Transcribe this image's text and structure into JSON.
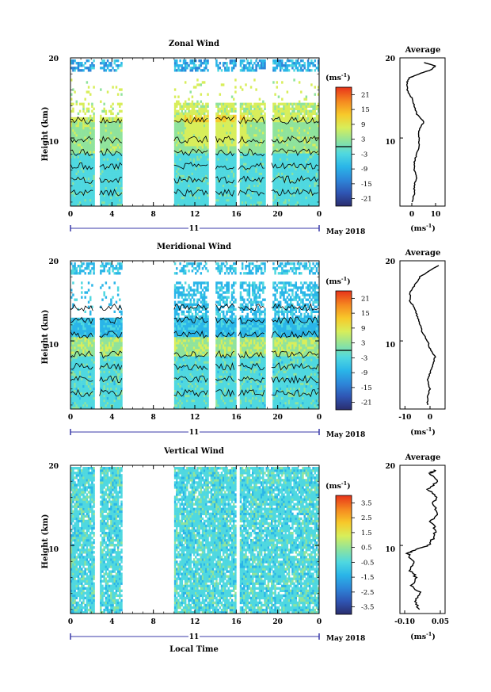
{
  "colors": {
    "scale": [
      "#2a2d6e",
      "#2f55b3",
      "#2d86d9",
      "#2ab5e8",
      "#4fd8e0",
      "#8fe39c",
      "#d8ee5a",
      "#f7c92a",
      "#f58a20",
      "#e8331a"
    ]
  },
  "chart_data": [
    {
      "type": "heatmap",
      "title": "Zonal Wind",
      "ylabel": "Height (km)",
      "xlabel": "",
      "y_ticks": [
        "20",
        "10"
      ],
      "x_ticks": [
        "0",
        "4",
        "8",
        "12",
        "16",
        "20",
        "0"
      ],
      "x_range_hours": [
        0,
        24
      ],
      "y_range_km": [
        1.5,
        20
      ],
      "date_row_label": "11",
      "date_label": "May 2018",
      "colorbar": {
        "unit": "(ms",
        "unit_exp": "-1",
        "unit_close": ")",
        "tick_labels": [
          "21",
          "15",
          "9",
          "3",
          "-3",
          "-9",
          "-15",
          "-21"
        ],
        "range": [
          -24,
          24
        ],
        "zero_line": true
      },
      "data_gaps_hours": [
        [
          2.3,
          2.8
        ],
        [
          5.0,
          10.0
        ],
        [
          13.4,
          14.0
        ]
      ],
      "profile": {
        "title": "Average",
        "x_ticks": [
          "0",
          "10"
        ],
        "x_range": [
          -5,
          14
        ],
        "xlabel": "(ms",
        "xlabel_exp": "-1",
        "xlabel_close": ")",
        "y_ticks": [
          "20",
          "10"
        ],
        "height_km": [
          2,
          3,
          4,
          5,
          6,
          7,
          8,
          9,
          10,
          11,
          12,
          13,
          14,
          15,
          16,
          17,
          17.5,
          18,
          18.5,
          19,
          19.5
        ],
        "values": [
          0,
          1,
          1,
          2,
          1,
          1,
          2,
          3,
          3,
          3,
          5,
          2,
          1,
          0,
          -2,
          -2,
          -1,
          3,
          8,
          10,
          4
        ]
      }
    },
    {
      "type": "heatmap",
      "title": "Meridional Wind",
      "ylabel": "Height (km)",
      "xlabel": "",
      "y_ticks": [
        "20",
        "10"
      ],
      "x_ticks": [
        "0",
        "4",
        "8",
        "12",
        "16",
        "20",
        "0"
      ],
      "x_range_hours": [
        0,
        24
      ],
      "y_range_km": [
        1.5,
        20
      ],
      "date_row_label": "11",
      "date_label": "May 2018",
      "colorbar": {
        "unit": "(ms",
        "unit_exp": "-1",
        "unit_close": ")",
        "tick_labels": [
          "21",
          "15",
          "9",
          "3",
          "-3",
          "-9",
          "-15",
          "-21"
        ],
        "range": [
          -24,
          24
        ],
        "zero_line": true
      },
      "data_gaps_hours": [
        [
          2.3,
          2.8
        ],
        [
          5.0,
          10.0
        ],
        [
          13.4,
          14.0
        ]
      ],
      "profile": {
        "title": "Average",
        "x_ticks": [
          "-10",
          "0"
        ],
        "x_range": [
          -12,
          6
        ],
        "xlabel": "(ms",
        "xlabel_exp": "-1",
        "xlabel_close": ")",
        "y_ticks": [
          "20",
          "10"
        ],
        "height_km": [
          2,
          3,
          4,
          5,
          6,
          7,
          8,
          9,
          10,
          11,
          12,
          13,
          14,
          15,
          16,
          17,
          18,
          19,
          19.5
        ],
        "values": [
          -1,
          -1,
          0,
          -1,
          0,
          1,
          2,
          0,
          -1,
          -3,
          -4,
          -5,
          -6,
          -8,
          -8,
          -6,
          -4,
          1,
          4
        ]
      }
    },
    {
      "type": "heatmap",
      "title": "Vertical Wind",
      "ylabel": "Height (km)",
      "xlabel": "Local Time",
      "y_ticks": [
        "20",
        "10"
      ],
      "x_ticks": [
        "0",
        "4",
        "8",
        "12",
        "16",
        "20",
        "0"
      ],
      "x_range_hours": [
        0,
        24
      ],
      "y_range_km": [
        1.5,
        20
      ],
      "date_row_label": "11",
      "date_label": "May 2018",
      "colorbar": {
        "unit": "(ms",
        "unit_exp": "-1",
        "unit_close": ")",
        "tick_labels": [
          "3.5",
          "2.5",
          "1.5",
          "0.5",
          "-0.5",
          "-1.5",
          "-2.5",
          "-3.5"
        ],
        "range": [
          -4,
          4
        ],
        "zero_line": false
      },
      "data_gaps_hours": [
        [
          2.3,
          2.8
        ],
        [
          5.0,
          10.0
        ]
      ],
      "profile": {
        "title": "Average",
        "x_ticks": [
          "-0.10",
          "0.05"
        ],
        "x_range": [
          -0.12,
          0.07
        ],
        "xlabel": "(ms",
        "xlabel_exp": "-1",
        "xlabel_close": ")",
        "y_ticks": [
          "20",
          "10"
        ],
        "height_km": [
          2,
          3,
          4,
          5,
          6,
          7,
          8,
          9,
          9.5,
          10,
          11,
          12,
          13,
          14,
          15,
          16,
          17,
          18,
          19,
          19.5
        ],
        "values": [
          -0.04,
          -0.06,
          -0.03,
          -0.07,
          -0.05,
          -0.08,
          -0.06,
          -0.09,
          -0.05,
          0.0,
          0.02,
          0.03,
          0.01,
          0.04,
          0.02,
          0.03,
          0.0,
          0.04,
          0.01,
          0.03
        ]
      }
    }
  ]
}
